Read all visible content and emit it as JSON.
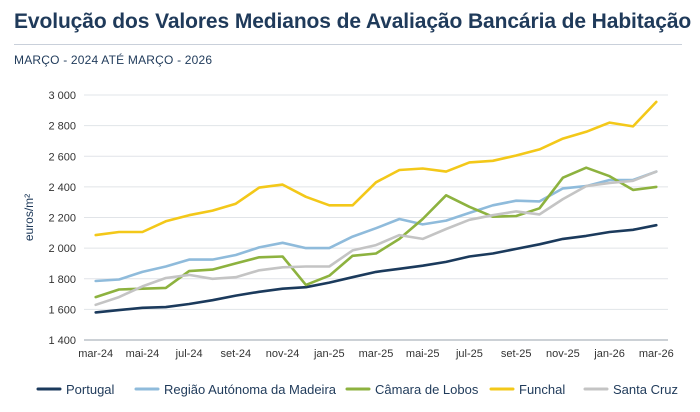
{
  "header": {
    "title": "Evolução dos Valores Medianos de Avaliação Bancária de Habitação",
    "subtitle": "MARÇO - 2024 ATÉ MARÇO - 2026"
  },
  "chart_data": {
    "type": "line",
    "title": "Evolução dos Valores Medianos de Avaliação Bancária de Habitação",
    "subtitle": "MARÇO - 2024 ATÉ MARÇO - 2026",
    "xlabel": "",
    "ylabel": "euros/m²",
    "ylim": [
      1400,
      3000
    ],
    "yticks": [
      1400,
      1600,
      1800,
      2000,
      2200,
      2400,
      2600,
      2800,
      3000
    ],
    "ytick_labels": [
      "1 400",
      "1 600",
      "1 800",
      "2 000",
      "2 200",
      "2 400",
      "2 600",
      "2 800",
      "3 000"
    ],
    "x": [
      "mar-24",
      "abr-24",
      "mai-24",
      "jun-24",
      "jul-24",
      "ago-24",
      "set-24",
      "out-24",
      "nov-24",
      "dez-24",
      "jan-25",
      "fev-25",
      "mar-25",
      "abr-25",
      "mai-25",
      "jun-25",
      "jul-25",
      "ago-25",
      "set-25",
      "out-25",
      "nov-25",
      "dez-25",
      "jan-26",
      "fev-26",
      "mar-26"
    ],
    "xtick_labels": [
      "mar-24",
      "mai-24",
      "jul-24",
      "set-24",
      "nov-24",
      "jan-25",
      "mar-25",
      "mai-25",
      "jul-25",
      "set-25",
      "nov-25",
      "jan-26",
      "mar-26"
    ],
    "grid": true,
    "legend_position": "bottom",
    "series": [
      {
        "name": "Portugal",
        "color": "#1b3a5c",
        "values": [
          1580,
          1595,
          1610,
          1615,
          1635,
          1660,
          1690,
          1715,
          1735,
          1745,
          1775,
          1810,
          1845,
          1865,
          1885,
          1910,
          1945,
          1965,
          1995,
          2025,
          2060,
          2080,
          2105,
          2120,
          2150
        ]
      },
      {
        "name": "Região Autónoma da Madeira",
        "color": "#8fbbdb",
        "values": [
          1785,
          1795,
          1845,
          1880,
          1925,
          1925,
          1955,
          2005,
          2035,
          2000,
          2000,
          2075,
          2130,
          2190,
          2155,
          2180,
          2230,
          2280,
          2310,
          2305,
          2390,
          2405,
          2445,
          2445,
          2500
        ]
      },
      {
        "name": "Câmara de Lobos",
        "color": "#8db23f",
        "values": [
          1680,
          1730,
          1735,
          1740,
          1850,
          1860,
          1900,
          1940,
          1945,
          1760,
          1820,
          1950,
          1965,
          2060,
          2190,
          2345,
          2270,
          2205,
          2210,
          2260,
          2460,
          2525,
          2470,
          2380,
          2400
        ]
      },
      {
        "name": "Funchal",
        "color": "#f3c819",
        "values": [
          2085,
          2105,
          2105,
          2175,
          2215,
          2245,
          2290,
          2395,
          2415,
          2335,
          2280,
          2280,
          2430,
          2510,
          2520,
          2500,
          2560,
          2570,
          2605,
          2645,
          2715,
          2760,
          2820,
          2795,
          2955
        ]
      },
      {
        "name": "Santa Cruz",
        "color": "#c4c4c4",
        "values": [
          1630,
          1680,
          1750,
          1805,
          1825,
          1800,
          1810,
          1855,
          1875,
          1880,
          1880,
          1985,
          2020,
          2085,
          2060,
          2125,
          2185,
          2215,
          2240,
          2220,
          2320,
          2405,
          2425,
          2440,
          2500
        ]
      }
    ]
  }
}
